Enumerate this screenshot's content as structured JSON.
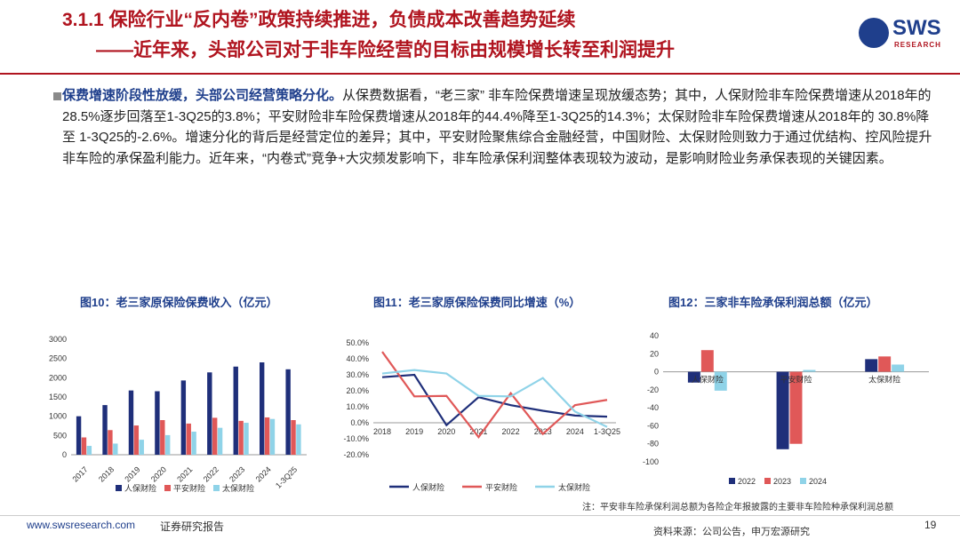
{
  "header": {
    "title_line1": "3.1.1 保险行业“反内卷”政策持续推进，负债成本改善趋势延续",
    "title_line2": "——近年来，头部公司对于非车险经营的目标由规模增长转至利润提升",
    "logo_text": "SWS",
    "logo_sub": "RESEARCH",
    "accent": "#b0141f",
    "brand": "#1f3f8c"
  },
  "body": {
    "lead": "保费增速阶段性放缓，头部公司经营策略分化。",
    "text": "从保费数据看，“老三家” 非车险保费增速呈现放缓态势；其中，人保财险非车险保费增速从2018年的28.5%逐步回落至1-3Q25的3.8%；平安财险非车险保费增速从2018年的44.4%降至1-3Q25的14.3%；太保财险非车险保费增速从2018年的 30.8%降至 1-3Q25的-2.6%。增速分化的背后是经营定位的差异；其中，平安财险聚焦综合金融经营，中国财险、太保财险则致力于通过优结构、控风险提升非车险的承保盈利能力。近年来，“内卷式”竞争+大灾频发影响下，非车险承保利润整体表现较为波动，是影响财险业务承保表现的关键因素。"
  },
  "chart_data": [
    {
      "type": "bar",
      "title": "图10：老三家原保险保费收入（亿元）",
      "categories": [
        "2017",
        "2018",
        "2019",
        "2020",
        "2021",
        "2022",
        "2023",
        "2024",
        "1-3Q25"
      ],
      "series": [
        {
          "name": "人保财险",
          "color": "#1f2f7a",
          "values": [
            1000,
            1290,
            1670,
            1650,
            1930,
            2140,
            2290,
            2400,
            2220
          ]
        },
        {
          "name": "平安财险",
          "color": "#e05858",
          "values": [
            450,
            640,
            760,
            900,
            810,
            960,
            880,
            970,
            900
          ]
        },
        {
          "name": "太保财险",
          "color": "#8fd3e8",
          "values": [
            230,
            290,
            390,
            510,
            600,
            700,
            830,
            930,
            790
          ]
        }
      ],
      "ylim": [
        0,
        3000
      ],
      "yticks": [
        "0",
        "500",
        "1000",
        "1500",
        "2000",
        "2500",
        "3000"
      ],
      "legend": "bottom"
    },
    {
      "type": "line",
      "title": "图11：老三家原保险保费同比增速（%）",
      "categories": [
        "2018",
        "2019",
        "2020",
        "2021",
        "2022",
        "2023",
        "2024",
        "1-3Q25"
      ],
      "series": [
        {
          "name": "人保财险",
          "color": "#1f2f7a",
          "values": [
            28.5,
            30,
            -1.5,
            16,
            11,
            7.5,
            4.5,
            3.8
          ]
        },
        {
          "name": "平安财险",
          "color": "#e05858",
          "values": [
            44.4,
            16.5,
            16.8,
            -9,
            18.5,
            -7,
            11,
            14.3
          ]
        },
        {
          "name": "太保财险",
          "color": "#8fd3e8",
          "values": [
            30.8,
            33,
            30.8,
            16.8,
            16.5,
            28,
            7,
            -2.6
          ]
        }
      ],
      "ylim": [
        -20,
        50
      ],
      "yticks": [
        "-20.0%",
        "-10.0%",
        "0.0%",
        "10.0%",
        "20.0%",
        "30.0%",
        "40.0%",
        "50.0%"
      ],
      "legend": "bottom"
    },
    {
      "type": "bar",
      "title": "图12：三家非车险承保利润总额（亿元）",
      "categories": [
        "人保财险",
        "平安财险",
        "太保财险"
      ],
      "series": [
        {
          "name": "2022",
          "color": "#1f2f7a",
          "values": [
            -12,
            -86,
            14
          ]
        },
        {
          "name": "2023",
          "color": "#e05858",
          "values": [
            24,
            -80,
            17
          ]
        },
        {
          "name": "2024",
          "color": "#8fd3e8",
          "values": [
            -21,
            2,
            8
          ]
        }
      ],
      "ylim": [
        -100,
        40
      ],
      "yticks": [
        "-100",
        "-80",
        "-60",
        "-40",
        "-20",
        "0",
        "20",
        "40"
      ],
      "legend": "bottom"
    }
  ],
  "footer": {
    "note": "注：平安非车险承保利润总额为各险企年报披露的主要非车险险种承保利润总额",
    "url": "www.swsresearch.com",
    "label": "证券研究报告",
    "source": "资料来源：公司公告，申万宏源研究",
    "page": "19"
  }
}
